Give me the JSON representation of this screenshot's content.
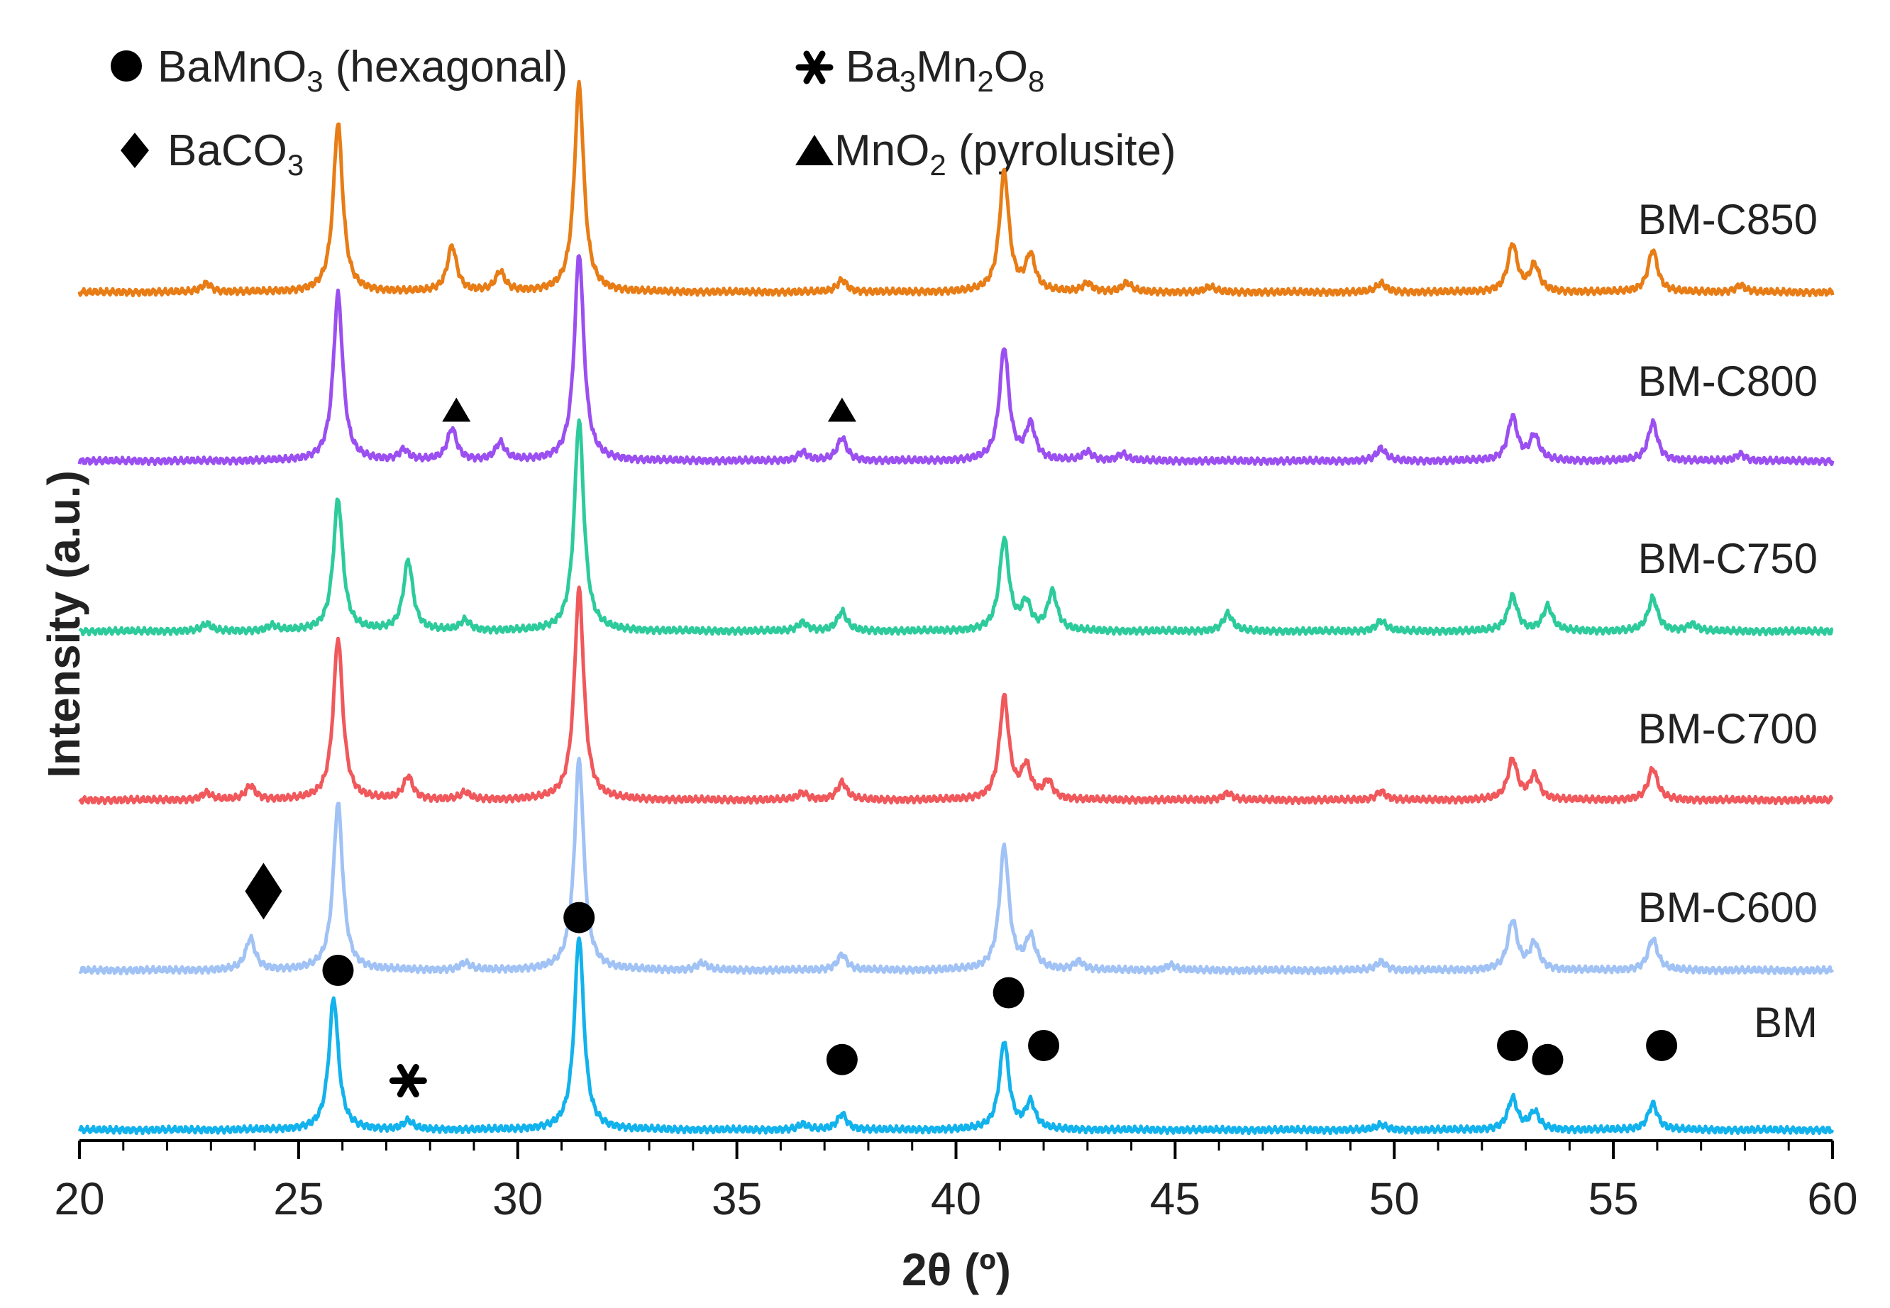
{
  "chart_data": {
    "type": "line",
    "title": "",
    "xlabel": "2θ (º)",
    "ylabel": "Intensity (a.u.)",
    "xlim": [
      20,
      60
    ],
    "xticks": [
      20,
      25,
      30,
      35,
      40,
      45,
      50,
      55,
      60
    ],
    "y_ticks_shown": false,
    "legend": [
      {
        "marker": "circle",
        "label": "BaMnO",
        "sub": "3",
        "tail": " (hexagonal)"
      },
      {
        "marker": "asterisk",
        "label": "Ba",
        "sub": "3",
        "mid": "Mn",
        "sub2": "2",
        "mid2": "O",
        "sub3": "8"
      },
      {
        "marker": "diamond",
        "label": "BaCO",
        "sub": "3"
      },
      {
        "marker": "triangle",
        "label": "MnO",
        "sub": "2",
        "tail": " (pyrolusite)"
      }
    ],
    "series": [
      {
        "name": "BM-C850",
        "color": "#E87C15",
        "peaks": [
          [
            22.9,
            0.05
          ],
          [
            25.9,
            0.96
          ],
          [
            28.5,
            0.26
          ],
          [
            29.6,
            0.11
          ],
          [
            31.4,
            1.18
          ],
          [
            37.4,
            0.07
          ],
          [
            41.1,
            0.68
          ],
          [
            41.7,
            0.2
          ],
          [
            43.0,
            0.05
          ],
          [
            43.9,
            0.05
          ],
          [
            45.8,
            0.03
          ],
          [
            49.7,
            0.05
          ],
          [
            52.7,
            0.27
          ],
          [
            53.2,
            0.15
          ],
          [
            55.9,
            0.24
          ],
          [
            57.9,
            0.04
          ]
        ]
      },
      {
        "name": "BM-C800",
        "color": "#9B4FF0",
        "peaks": [
          [
            25.9,
            0.95
          ],
          [
            27.4,
            0.06
          ],
          [
            28.5,
            0.18
          ],
          [
            29.6,
            0.1
          ],
          [
            31.4,
            1.18
          ],
          [
            36.5,
            0.05
          ],
          [
            37.4,
            0.13
          ],
          [
            41.1,
            0.64
          ],
          [
            41.7,
            0.2
          ],
          [
            43.0,
            0.05
          ],
          [
            43.8,
            0.04
          ],
          [
            49.7,
            0.07
          ],
          [
            52.7,
            0.25
          ],
          [
            53.2,
            0.14
          ],
          [
            55.9,
            0.22
          ],
          [
            57.9,
            0.04
          ]
        ]
      },
      {
        "name": "BM-C750",
        "color": "#2DCB9C",
        "peaks": [
          [
            22.9,
            0.04
          ],
          [
            24.4,
            0.03
          ],
          [
            25.9,
            0.75
          ],
          [
            27.5,
            0.4
          ],
          [
            28.8,
            0.06
          ],
          [
            31.4,
            1.2
          ],
          [
            36.5,
            0.05
          ],
          [
            37.4,
            0.11
          ],
          [
            41.1,
            0.52
          ],
          [
            41.6,
            0.15
          ],
          [
            42.2,
            0.22
          ],
          [
            46.2,
            0.1
          ],
          [
            49.7,
            0.06
          ],
          [
            52.7,
            0.2
          ],
          [
            53.5,
            0.14
          ],
          [
            55.9,
            0.19
          ],
          [
            56.8,
            0.04
          ]
        ]
      },
      {
        "name": "BM-C700",
        "color": "#F0585B",
        "peaks": [
          [
            22.9,
            0.04
          ],
          [
            23.9,
            0.08
          ],
          [
            25.9,
            0.92
          ],
          [
            27.5,
            0.13
          ],
          [
            28.8,
            0.04
          ],
          [
            31.4,
            1.2
          ],
          [
            36.5,
            0.04
          ],
          [
            37.4,
            0.1
          ],
          [
            41.1,
            0.58
          ],
          [
            41.6,
            0.18
          ],
          [
            42.1,
            0.1
          ],
          [
            46.2,
            0.04
          ],
          [
            49.7,
            0.05
          ],
          [
            52.7,
            0.23
          ],
          [
            53.2,
            0.14
          ],
          [
            55.9,
            0.18
          ]
        ]
      },
      {
        "name": "BM-C600",
        "color": "#A0C2F5",
        "peaks": [
          [
            23.9,
            0.18
          ],
          [
            25.9,
            0.95
          ],
          [
            28.8,
            0.04
          ],
          [
            31.4,
            1.2
          ],
          [
            34.2,
            0.04
          ],
          [
            37.4,
            0.09
          ],
          [
            41.1,
            0.7
          ],
          [
            41.7,
            0.18
          ],
          [
            42.8,
            0.05
          ],
          [
            44.9,
            0.03
          ],
          [
            49.7,
            0.05
          ],
          [
            52.7,
            0.28
          ],
          [
            53.2,
            0.15
          ],
          [
            55.9,
            0.18
          ]
        ]
      },
      {
        "name": "BM",
        "color": "#12B2EC",
        "peaks": [
          [
            25.8,
            0.75
          ],
          [
            27.5,
            0.05
          ],
          [
            31.4,
            1.1
          ],
          [
            36.5,
            0.03
          ],
          [
            37.4,
            0.09
          ],
          [
            41.1,
            0.5
          ],
          [
            41.7,
            0.15
          ],
          [
            49.7,
            0.03
          ],
          [
            52.7,
            0.18
          ],
          [
            53.2,
            0.1
          ],
          [
            55.9,
            0.15
          ]
        ]
      }
    ],
    "annotations": [
      {
        "symbol": "circle",
        "x": 25.9,
        "series": "BM-C600",
        "intensity": 0.0
      },
      {
        "symbol": "circle",
        "x": 31.4,
        "series": "BM-C600",
        "intensity": 0.3
      },
      {
        "symbol": "diamond",
        "x": 24.2,
        "series": "BM-C600",
        "intensity": 0.45
      },
      {
        "symbol": "asterisk",
        "x": 27.5,
        "series": "BM",
        "intensity": 0.28
      },
      {
        "symbol": "circle",
        "x": 37.4,
        "series": "BM",
        "intensity": 0.4
      },
      {
        "symbol": "circle",
        "x": 41.2,
        "series": "BM",
        "intensity": 0.78
      },
      {
        "symbol": "circle",
        "x": 42.0,
        "series": "BM",
        "intensity": 0.48
      },
      {
        "symbol": "circle",
        "x": 52.7,
        "series": "BM",
        "intensity": 0.48
      },
      {
        "symbol": "circle",
        "x": 53.5,
        "series": "BM",
        "intensity": 0.4
      },
      {
        "symbol": "circle",
        "x": 56.1,
        "series": "BM",
        "intensity": 0.48
      },
      {
        "symbol": "triangle",
        "x": 28.6,
        "series": "BM-C800",
        "intensity": 0.28
      },
      {
        "symbol": "triangle",
        "x": 37.4,
        "series": "BM-C800",
        "intensity": 0.28
      }
    ]
  }
}
